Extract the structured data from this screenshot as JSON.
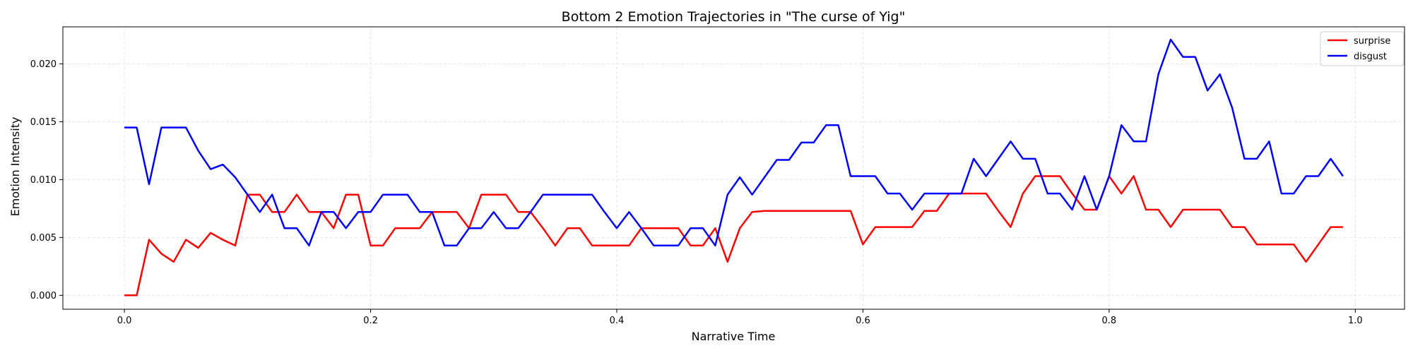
{
  "chart_data": {
    "type": "line",
    "title": "Bottom 2 Emotion Trajectories in \"The curse of Yig\"",
    "xlabel": "Narrative Time",
    "ylabel": "Emotion Intensity",
    "xlim": [
      -0.05,
      1.04
    ],
    "ylim": [
      -0.0012,
      0.0232
    ],
    "grid": true,
    "legend_position": "top-right",
    "xticks": [
      0.0,
      0.2,
      0.4,
      0.6,
      0.8,
      1.0
    ],
    "xtick_labels": [
      "0.0",
      "0.2",
      "0.4",
      "0.6",
      "0.8",
      "1.0"
    ],
    "yticks": [
      0.0,
      0.005,
      0.01,
      0.015,
      0.02
    ],
    "ytick_labels": [
      "0.000",
      "0.005",
      "0.010",
      "0.015",
      "0.020"
    ],
    "x": [
      0.0,
      0.01,
      0.02,
      0.03,
      0.04,
      0.05,
      0.06,
      0.07,
      0.08,
      0.09,
      0.1,
      0.11,
      0.12,
      0.13,
      0.14,
      0.15,
      0.16,
      0.17,
      0.18,
      0.19,
      0.2,
      0.21,
      0.22,
      0.23,
      0.24,
      0.25,
      0.26,
      0.27,
      0.28,
      0.29,
      0.3,
      0.31,
      0.32,
      0.33,
      0.34,
      0.35,
      0.36,
      0.37,
      0.38,
      0.39,
      0.4,
      0.41,
      0.42,
      0.43,
      0.44,
      0.45,
      0.46,
      0.47,
      0.48,
      0.49,
      0.5,
      0.51,
      0.52,
      0.53,
      0.54,
      0.55,
      0.56,
      0.57,
      0.58,
      0.59,
      0.6,
      0.61,
      0.62,
      0.63,
      0.64,
      0.65,
      0.66,
      0.67,
      0.68,
      0.69,
      0.7,
      0.71,
      0.72,
      0.73,
      0.74,
      0.75,
      0.76,
      0.77,
      0.78,
      0.79,
      0.8,
      0.81,
      0.82,
      0.83,
      0.84,
      0.85,
      0.86,
      0.87,
      0.88,
      0.89,
      0.9,
      0.91,
      0.92,
      0.93,
      0.94,
      0.95,
      0.96,
      0.97,
      0.98,
      0.99
    ],
    "series": [
      {
        "name": "surprise",
        "color": "#ff0000",
        "values": [
          0.0,
          0.0,
          0.0048,
          0.0036,
          0.0029,
          0.0048,
          0.0041,
          0.0054,
          0.0048,
          0.0043,
          0.0087,
          0.0087,
          0.0072,
          0.0072,
          0.0087,
          0.0072,
          0.0072,
          0.0058,
          0.0087,
          0.0087,
          0.0043,
          0.0043,
          0.0058,
          0.0058,
          0.0058,
          0.0072,
          0.0072,
          0.0072,
          0.0058,
          0.0087,
          0.0087,
          0.0087,
          0.0072,
          0.0072,
          0.0058,
          0.0043,
          0.0058,
          0.0058,
          0.0043,
          0.0043,
          0.0043,
          0.0043,
          0.0058,
          0.0058,
          0.0058,
          0.0058,
          0.0043,
          0.0043,
          0.0058,
          0.0029,
          0.0058,
          0.0072,
          0.0073,
          0.0073,
          0.0073,
          0.0073,
          0.0073,
          0.0073,
          0.0073,
          0.0073,
          0.0044,
          0.0059,
          0.0059,
          0.0059,
          0.0059,
          0.0073,
          0.0073,
          0.0088,
          0.0088,
          0.0088,
          0.0088,
          0.0073,
          0.0059,
          0.0088,
          0.0103,
          0.0103,
          0.0103,
          0.0088,
          0.0074,
          0.0074,
          0.0103,
          0.0088,
          0.0103,
          0.0074,
          0.0074,
          0.0059,
          0.0074,
          0.0074,
          0.0074,
          0.0074,
          0.0059,
          0.0059,
          0.0044,
          0.0044,
          0.0044,
          0.0044,
          0.0029,
          0.0044,
          0.0059,
          0.0059
        ]
      },
      {
        "name": "disgust",
        "color": "#0000ff",
        "values": [
          0.0145,
          0.0145,
          0.0096,
          0.0145,
          0.0145,
          0.0145,
          0.0125,
          0.0109,
          0.0113,
          0.0102,
          0.0087,
          0.0072,
          0.0087,
          0.0058,
          0.0058,
          0.0043,
          0.0072,
          0.0072,
          0.0058,
          0.0072,
          0.0072,
          0.0087,
          0.0087,
          0.0087,
          0.0072,
          0.0072,
          0.0043,
          0.0043,
          0.0058,
          0.0058,
          0.0072,
          0.0058,
          0.0058,
          0.0072,
          0.0087,
          0.0087,
          0.0087,
          0.0087,
          0.0087,
          0.0072,
          0.0058,
          0.0072,
          0.0058,
          0.0043,
          0.0043,
          0.0043,
          0.0058,
          0.0058,
          0.0043,
          0.0087,
          0.0102,
          0.0087,
          0.0102,
          0.0117,
          0.0117,
          0.0132,
          0.0132,
          0.0147,
          0.0147,
          0.0103,
          0.0103,
          0.0103,
          0.0088,
          0.0088,
          0.0074,
          0.0088,
          0.0088,
          0.0088,
          0.0088,
          0.0118,
          0.0103,
          0.0118,
          0.0133,
          0.0118,
          0.0118,
          0.0088,
          0.0088,
          0.0074,
          0.0103,
          0.0074,
          0.0103,
          0.0147,
          0.0133,
          0.0133,
          0.0191,
          0.0221,
          0.0206,
          0.0206,
          0.0177,
          0.0191,
          0.0162,
          0.0118,
          0.0118,
          0.0133,
          0.0088,
          0.0088,
          0.0103,
          0.0103,
          0.0118,
          0.0103
        ]
      }
    ]
  }
}
